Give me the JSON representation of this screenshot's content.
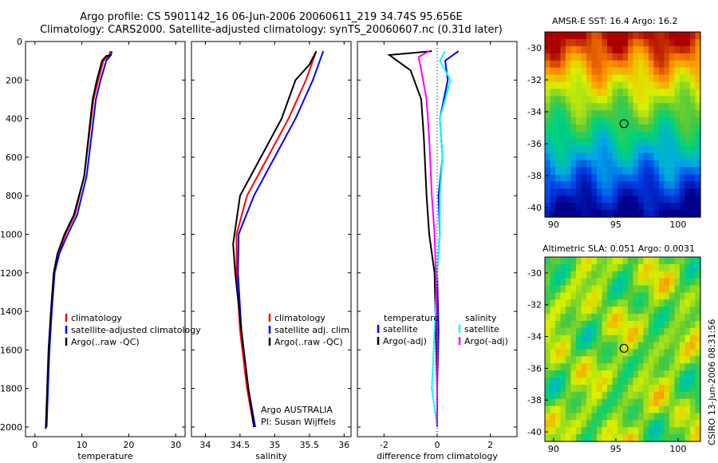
{
  "title_line1": "Argo profile: CS 5901142_16 06-Jun-2006 20060611_219 34.74S 95.656E",
  "title_line2": "Climatology: CARS2000. Satellite-adjusted climatology: synTS_20060607.nc (0.31d later)",
  "sst_title": "AMSR-E SST: 16.4 Argo: 16.2",
  "sla_title": "Altimetric SLA: 0.051 Argo: 0.0031",
  "stamp": "CSIRO 13-Jun-2006 08:31:56",
  "chart_data": [
    {
      "type": "line",
      "xlabel": "temperature",
      "xlim": [
        -2,
        32
      ],
      "ylim": [
        0,
        2050
      ],
      "xticks": [
        "0",
        "10",
        "20",
        "30"
      ],
      "yticks": [
        "0",
        "200",
        "400",
        "600",
        "800",
        "1000",
        "1200",
        "1400",
        "1600",
        "1800",
        "2000"
      ],
      "legend": [
        "climatology",
        "satellite-adjusted climatology",
        "Argo(..raw -QC)"
      ],
      "series": [
        {
          "name": "climatology",
          "color": "#ff0000",
          "x": [
            16,
            15.9,
            14.6,
            13.5,
            12.5,
            11.5,
            10.5,
            8.5,
            6.5,
            5,
            4.1,
            3.5,
            3,
            2.7,
            2.4
          ],
          "y": [
            50,
            70,
            100,
            200,
            300,
            500,
            700,
            900,
            1000,
            1100,
            1200,
            1400,
            1600,
            1800,
            2000
          ]
        },
        {
          "name": "satellite-adjusted climatology",
          "color": "#0000ff",
          "x": [
            16.4,
            16.2,
            15.2,
            14,
            13,
            12,
            11,
            9,
            7,
            5.2,
            4.2,
            3.6,
            3.1,
            2.8,
            2.5
          ],
          "y": [
            50,
            70,
            100,
            200,
            300,
            500,
            700,
            900,
            1000,
            1100,
            1200,
            1400,
            1600,
            1800,
            2000
          ]
        },
        {
          "name": "Argo(..raw -QC)",
          "color": "#000000",
          "x": [
            16.2,
            15.2,
            14.3,
            13.2,
            12.3,
            11.4,
            10.5,
            8.3,
            6.3,
            4.8,
            4,
            3.4,
            2.9,
            2.6,
            2.3
          ],
          "y": [
            70,
            75,
            100,
            200,
            300,
            500,
            700,
            900,
            1000,
            1100,
            1200,
            1400,
            1600,
            1800,
            2010
          ]
        }
      ]
    },
    {
      "type": "line",
      "xlabel": "salinity",
      "xlim": [
        33.8,
        36.1
      ],
      "ylim": [
        0,
        2050
      ],
      "xticks": [
        "34",
        "34.5",
        "35",
        "35.5",
        "36"
      ],
      "legend": [
        "climatology",
        "satellite adj. clim.",
        "Argo(..raw -QC)"
      ],
      "annotation": [
        "Argo AUSTRALIA",
        "PI: Susan Wijffels"
      ],
      "series": [
        {
          "name": "climatology",
          "color": "#ff0000",
          "x": [
            35.6,
            35.55,
            35.45,
            35.2,
            34.9,
            34.6,
            34.45,
            34.45,
            34.5,
            34.6,
            34.7
          ],
          "y": [
            50,
            100,
            200,
            400,
            600,
            800,
            1000,
            1200,
            1500,
            1800,
            2000
          ]
        },
        {
          "name": "satellite adj. clim.",
          "color": "#0000ff",
          "x": [
            35.7,
            35.65,
            35.55,
            35.3,
            35,
            34.7,
            34.48,
            34.47,
            34.52,
            34.62,
            34.72
          ],
          "y": [
            50,
            100,
            200,
            400,
            600,
            800,
            1000,
            1200,
            1500,
            1800,
            2000
          ]
        },
        {
          "name": "Argo(..raw -QC)",
          "color": "#000000",
          "x": [
            35.6,
            35.5,
            35.3,
            35.1,
            34.8,
            34.5,
            34.4,
            34.43,
            34.52,
            34.62,
            34.7
          ],
          "y": [
            50,
            120,
            200,
            400,
            600,
            800,
            1050,
            1200,
            1500,
            1800,
            2000
          ]
        }
      ]
    },
    {
      "type": "line",
      "xlabel": "difference from climatology",
      "xlim": [
        -3,
        3
      ],
      "ylim": [
        0,
        2050
      ],
      "xticks": [
        "-2",
        "0",
        "2"
      ],
      "legend_groups": [
        {
          "heading": "temperature",
          "items": [
            "satellite",
            "Argo(-adj)"
          ]
        },
        {
          "heading": "salinity",
          "items": [
            "satellite",
            "Argo(-adj)"
          ]
        }
      ],
      "series": [
        {
          "name": "temperature satellite",
          "color": "#0000ff",
          "x": [
            0.8,
            0.3,
            0.4,
            0.1,
            0.2,
            0.05,
            0.1,
            0,
            0.05,
            0,
            0
          ],
          "y": [
            50,
            100,
            200,
            400,
            600,
            800,
            1000,
            1200,
            1500,
            1800,
            2000
          ]
        },
        {
          "name": "temperature Argo(-adj)",
          "color": "#000000",
          "x": [
            -0.2,
            -1.8,
            -1,
            -0.6,
            -0.5,
            -0.4,
            -0.3,
            -0.1,
            -0.05,
            0,
            0
          ],
          "y": [
            50,
            70,
            150,
            300,
            500,
            800,
            1000,
            1200,
            1500,
            1800,
            2000
          ]
        },
        {
          "name": "salinity satellite",
          "color": "#00ffff",
          "x": [
            0.3,
            0.1,
            0.5,
            0.1,
            0.2,
            0.1,
            0.1,
            0,
            -0.1,
            -0.2,
            0
          ],
          "y": [
            50,
            100,
            200,
            400,
            600,
            800,
            1000,
            1200,
            1500,
            1800,
            2000
          ]
        },
        {
          "name": "salinity Argo(-adj)",
          "color": "#ff00ff",
          "x": [
            -0.3,
            -0.7,
            -0.6,
            -0.4,
            -0.3,
            -0.2,
            -0.1,
            -0.05,
            0,
            0,
            0
          ],
          "y": [
            50,
            80,
            150,
            300,
            500,
            800,
            1000,
            1200,
            1500,
            1800,
            2000
          ]
        }
      ]
    },
    {
      "type": "heatmap",
      "title": "AMSR-E SST: 16.4 Argo: 16.2",
      "xticks": [
        "90",
        "95",
        "100"
      ],
      "yticks": [
        "-30",
        "-32",
        "-34",
        "-36",
        "-38",
        "-40"
      ],
      "marker": {
        "lon": 95.656,
        "lat": -34.74
      }
    },
    {
      "type": "heatmap",
      "title": "Altimetric SLA: 0.051 Argo: 0.0031",
      "xticks": [
        "90",
        "95",
        "100"
      ],
      "yticks": [
        "-30",
        "-32",
        "-34",
        "-36",
        "-38",
        "-40"
      ],
      "marker": {
        "lon": 95.656,
        "lat": -34.74
      }
    }
  ]
}
